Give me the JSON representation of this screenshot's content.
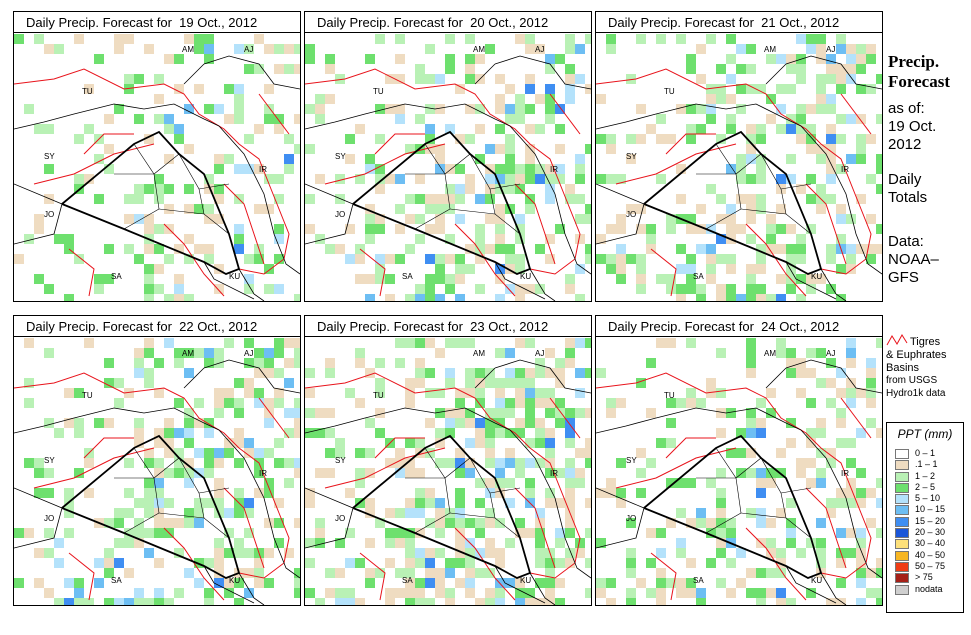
{
  "panels": [
    {
      "title_prefix": "Daily Precip. Forecast for",
      "date": "19 Oct., 2012",
      "seed": 3,
      "wet": 0.35
    },
    {
      "title_prefix": "Daily Precip. Forecast for",
      "date": "20 Oct., 2012",
      "seed": 11,
      "wet": 0.55
    },
    {
      "title_prefix": "Daily Precip. Forecast for",
      "date": "21 Oct., 2012",
      "seed": 23,
      "wet": 0.6
    },
    {
      "title_prefix": "Daily Precip. Forecast for",
      "date": "22 Oct., 2012",
      "seed": 37,
      "wet": 0.55
    },
    {
      "title_prefix": "Daily Precip. Forecast for",
      "date": "23 Oct., 2012",
      "seed": 51,
      "wet": 0.65
    },
    {
      "title_prefix": "Daily Precip. Forecast for",
      "date": "24 Oct., 2012",
      "seed": 67,
      "wet": 0.5
    }
  ],
  "country_labels": [
    "AM",
    "AJ",
    "TU",
    "SY",
    "IR",
    "JO",
    "SA",
    "KU"
  ],
  "sidebar": {
    "title_line1": "Precip.",
    "title_line2": "Forecast",
    "asof_line1": "as of:",
    "asof_line2": "19 Oct.",
    "asof_line3": "2012",
    "daily_line1": "Daily",
    "daily_line2": "Totals",
    "data_line1": "Data:",
    "data_line2": "NOAA–",
    "data_line3": "GFS"
  },
  "basin_legend": {
    "line1": "Tigres",
    "line2": "& Euphrates",
    "line3": "Basins",
    "line4": "from USGS",
    "line5": "Hydro1k data",
    "color": "#e8131b"
  },
  "ppt_legend": {
    "title": "PPT (mm)",
    "classes": [
      {
        "label": "0 – 1",
        "color": "#ffffff"
      },
      {
        "label": ".1 – 1",
        "color": "#efdcc1"
      },
      {
        "label": "1 – 2",
        "color": "#b9f1b5"
      },
      {
        "label": "2 – 5",
        "color": "#6ee06e"
      },
      {
        "label": "5 – 10",
        "color": "#b4e2fb"
      },
      {
        "label": "10 – 15",
        "color": "#6dbef3"
      },
      {
        "label": "15 – 20",
        "color": "#3f8ef2"
      },
      {
        "label": "20 – 30",
        "color": "#1a56d9"
      },
      {
        "label": "30 – 40",
        "color": "#fde07a"
      },
      {
        "label": "40 – 50",
        "color": "#f7b623"
      },
      {
        "label": "50 – 75",
        "color": "#f03c15"
      },
      {
        "label": "> 75",
        "color": "#a52018"
      },
      {
        "label": "nodata",
        "color": "#cfcfcf"
      }
    ]
  }
}
